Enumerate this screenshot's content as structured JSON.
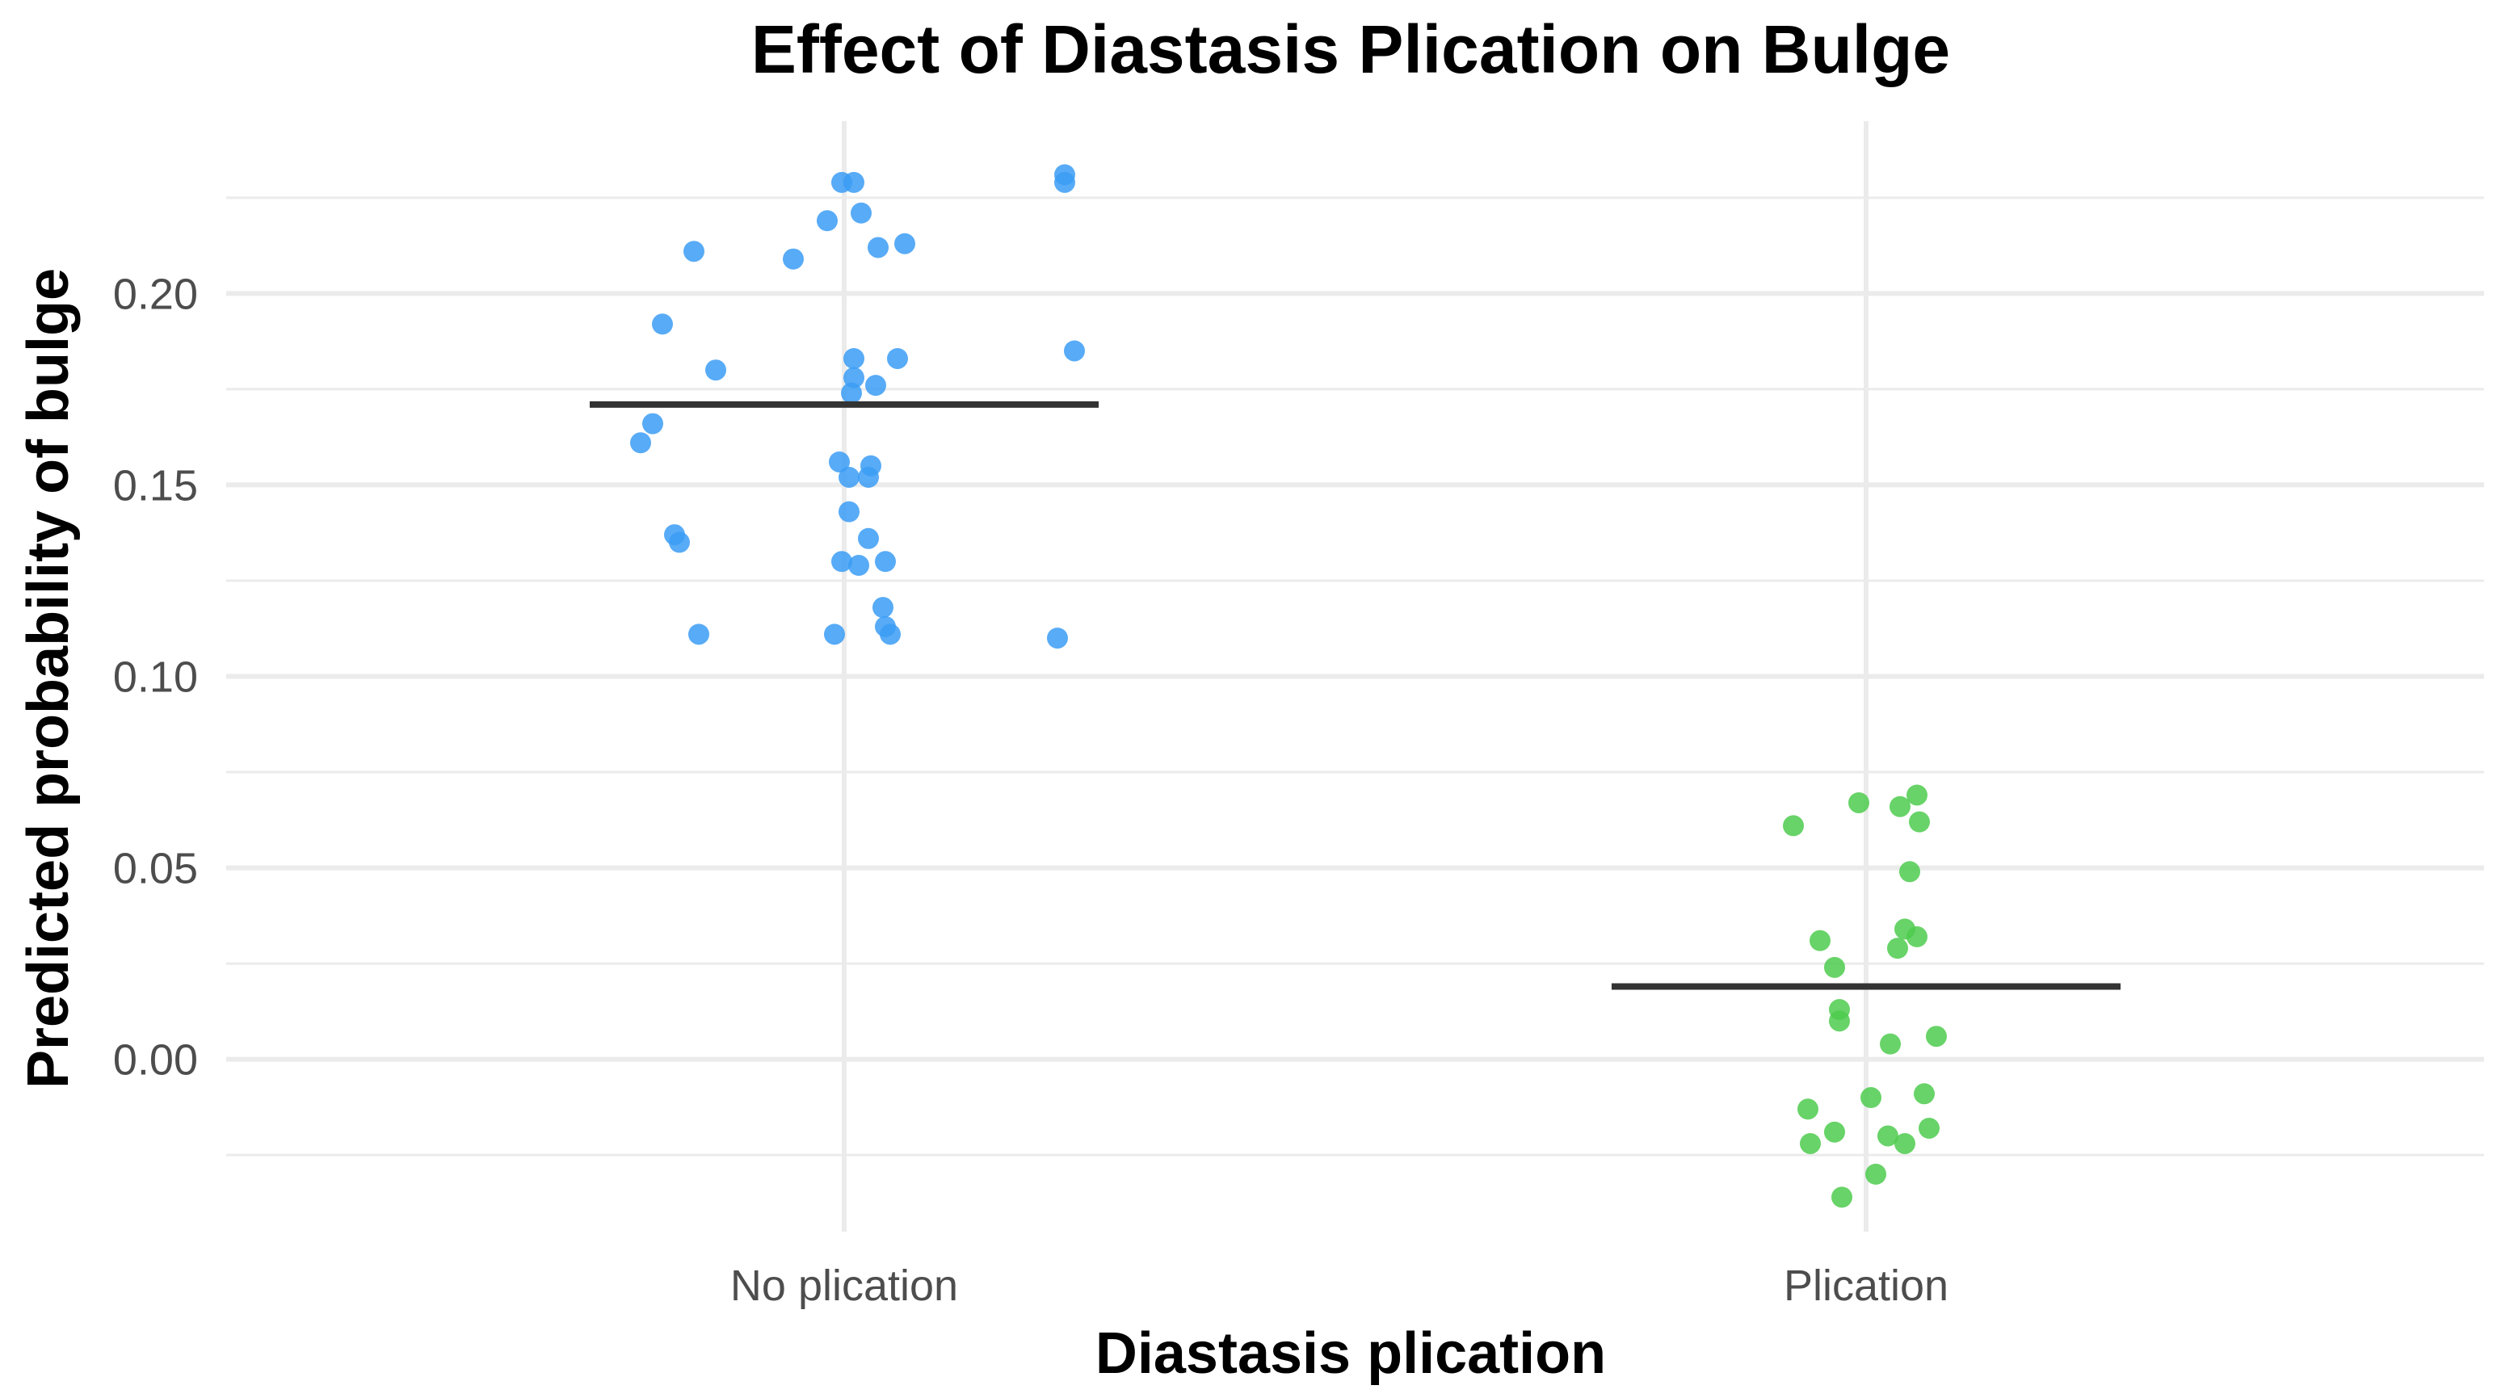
{
  "chart_data": {
    "type": "scatter",
    "title": "Effect of Diastasis Plication on Bulge",
    "xlabel": "Diastasis plication",
    "ylabel": "Predicted probability of bulge",
    "categories": [
      "No plication",
      "Plication"
    ],
    "ylim": [
      -0.045,
      0.245
    ],
    "yticks": [
      0.0,
      0.05,
      0.1,
      0.15,
      0.2
    ],
    "ytick_labels": [
      "0.00",
      "0.05",
      "0.10",
      "0.15",
      "0.20"
    ],
    "grid": true,
    "legend": "none",
    "series": [
      {
        "category": "No plication",
        "color": "#3b9cf5",
        "mean": 0.171,
        "points": [
          {
            "jitter": 0.91,
            "y": 0.231
          },
          {
            "jitter": 0.91,
            "y": 0.229
          },
          {
            "jitter": -0.01,
            "y": 0.229
          },
          {
            "jitter": 0.04,
            "y": 0.229
          },
          {
            "jitter": 0.07,
            "y": 0.221
          },
          {
            "jitter": -0.07,
            "y": 0.219
          },
          {
            "jitter": -0.21,
            "y": 0.209
          },
          {
            "jitter": 0.14,
            "y": 0.212
          },
          {
            "jitter": 0.25,
            "y": 0.213
          },
          {
            "jitter": -0.62,
            "y": 0.211
          },
          {
            "jitter": -0.75,
            "y": 0.192
          },
          {
            "jitter": -0.53,
            "y": 0.18
          },
          {
            "jitter": 0.04,
            "y": 0.183
          },
          {
            "jitter": 0.04,
            "y": 0.178
          },
          {
            "jitter": 0.03,
            "y": 0.174
          },
          {
            "jitter": 0.13,
            "y": 0.176
          },
          {
            "jitter": 0.22,
            "y": 0.183
          },
          {
            "jitter": 0.95,
            "y": 0.185
          },
          {
            "jitter": -0.79,
            "y": 0.166
          },
          {
            "jitter": -0.84,
            "y": 0.161
          },
          {
            "jitter": -0.02,
            "y": 0.156
          },
          {
            "jitter": 0.02,
            "y": 0.152
          },
          {
            "jitter": 0.11,
            "y": 0.155
          },
          {
            "jitter": 0.1,
            "y": 0.152
          },
          {
            "jitter": 0.02,
            "y": 0.143
          },
          {
            "jitter": -0.7,
            "y": 0.137
          },
          {
            "jitter": -0.68,
            "y": 0.135
          },
          {
            "jitter": 0.1,
            "y": 0.136
          },
          {
            "jitter": -0.01,
            "y": 0.13
          },
          {
            "jitter": 0.06,
            "y": 0.129
          },
          {
            "jitter": 0.17,
            "y": 0.13
          },
          {
            "jitter": 0.16,
            "y": 0.118
          },
          {
            "jitter": 0.17,
            "y": 0.113
          },
          {
            "jitter": 0.19,
            "y": 0.111
          },
          {
            "jitter": -0.6,
            "y": 0.111
          },
          {
            "jitter": -0.04,
            "y": 0.111
          },
          {
            "jitter": 0.88,
            "y": 0.11
          }
        ]
      },
      {
        "category": "Plication",
        "color": "#4ecb4e",
        "mean": 0.019,
        "points": [
          {
            "jitter": -0.3,
            "y": 0.061
          },
          {
            "jitter": -0.03,
            "y": 0.067
          },
          {
            "jitter": 0.14,
            "y": 0.066
          },
          {
            "jitter": 0.21,
            "y": 0.069
          },
          {
            "jitter": 0.22,
            "y": 0.062
          },
          {
            "jitter": 0.18,
            "y": 0.049
          },
          {
            "jitter": -0.19,
            "y": 0.031
          },
          {
            "jitter": 0.16,
            "y": 0.034
          },
          {
            "jitter": 0.21,
            "y": 0.032
          },
          {
            "jitter": 0.13,
            "y": 0.029
          },
          {
            "jitter": -0.13,
            "y": 0.024
          },
          {
            "jitter": -0.11,
            "y": 0.013
          },
          {
            "jitter": -0.11,
            "y": 0.01
          },
          {
            "jitter": 0.1,
            "y": 0.004
          },
          {
            "jitter": 0.29,
            "y": 0.006
          },
          {
            "jitter": 0.02,
            "y": -0.01
          },
          {
            "jitter": -0.24,
            "y": -0.013
          },
          {
            "jitter": 0.24,
            "y": -0.009
          },
          {
            "jitter": -0.23,
            "y": -0.022
          },
          {
            "jitter": -0.13,
            "y": -0.019
          },
          {
            "jitter": 0.09,
            "y": -0.02
          },
          {
            "jitter": 0.16,
            "y": -0.022
          },
          {
            "jitter": 0.26,
            "y": -0.018
          },
          {
            "jitter": 0.04,
            "y": -0.03
          },
          {
            "jitter": -0.1,
            "y": -0.036
          }
        ]
      }
    ]
  }
}
